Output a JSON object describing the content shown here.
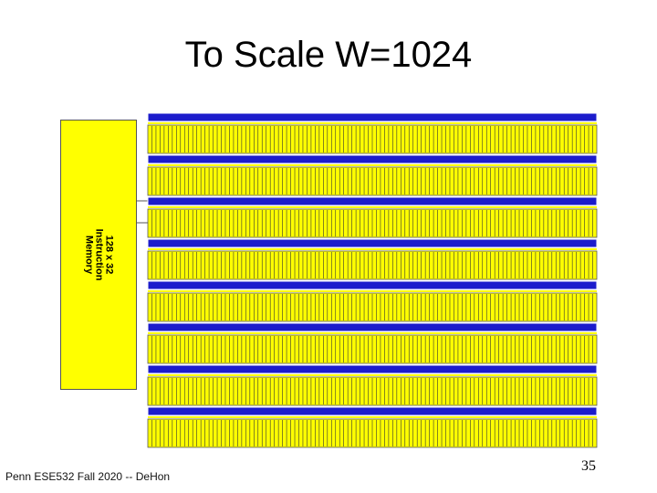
{
  "slide": {
    "title": "To Scale W=1024",
    "footer": "Penn ESE532 Fall 2020 -- DeHon",
    "page_number": "35"
  },
  "instruction_memory": {
    "label_lines": [
      "128 x 32",
      "Instruction",
      "Memory"
    ]
  },
  "colors": {
    "memory_fill": "#ffff00",
    "bus_blue": "#1c1ccc",
    "stripe": "#333333",
    "outline": "#555555"
  }
}
